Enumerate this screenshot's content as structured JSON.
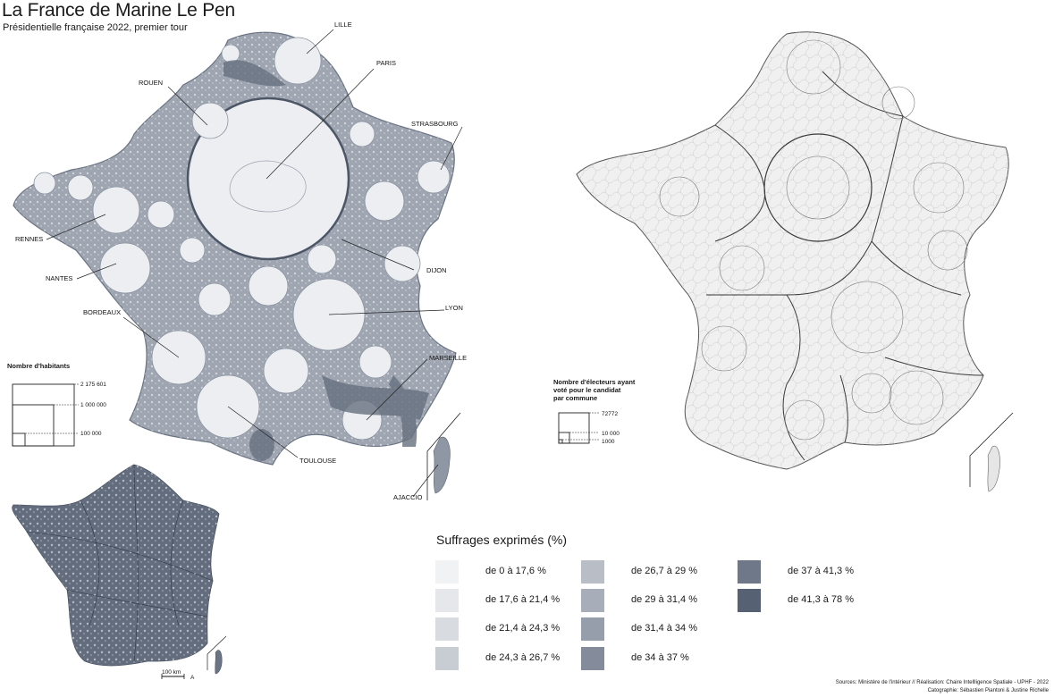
{
  "title": "La France de Marine Le Pen",
  "subtitle": "Présidentielle française 2022, premier tour",
  "cities": {
    "lille": "LILLE",
    "paris": "PARIS",
    "rouen": "ROUEN",
    "strasbourg": "STRASBOURG",
    "rennes": "RENNES",
    "dijon": "DIJON",
    "nantes": "NANTES",
    "lyon": "LYON",
    "bordeaux": "BORDEAUX",
    "marseille": "MARSEILLE",
    "toulouse": "TOULOUSE",
    "ajaccio": "AJACCIO"
  },
  "population_legend": {
    "title": "Nombre d'habitants",
    "values": [
      "2 175 601",
      "1 000 000",
      "100 000"
    ]
  },
  "voters_legend": {
    "title_line1": "Nombre d'électeurs ayant",
    "title_line2": "voté pour le candidat",
    "title_line3": "par commune",
    "values": [
      "72772",
      "10 000",
      "1000"
    ]
  },
  "scale_bar": "100 km",
  "north_label": "A",
  "legend": {
    "title": "Suffrages exprimés (%)",
    "classes": [
      {
        "label": "de 0 à 17,6 %",
        "color": "#f1f2f4"
      },
      {
        "label": "de 17,6 à 21,4 %",
        "color": "#e6e7ea"
      },
      {
        "label": "de 21,4 à 24,3 %",
        "color": "#d8dbe0"
      },
      {
        "label": "de 24,3 à 26,7 %",
        "color": "#c8ccd3"
      },
      {
        "label": "de 26,7 à 29 %",
        "color": "#b8bdc6"
      },
      {
        "label": "de 29 à 31,4 %",
        "color": "#a8aeb9"
      },
      {
        "label": "de 31,4 à 34 %",
        "color": "#969dab"
      },
      {
        "label": "de 34 à 37 %",
        "color": "#848c9c"
      },
      {
        "label": "de 37 à 41,3 %",
        "color": "#6f7888"
      },
      {
        "label": "de 41,3 à 78 %",
        "color": "#566173"
      }
    ]
  },
  "sources_line1": "Sources: Ministère de l'intérieur // Réalisation: Chaire Intellligence Spatiale - UPHF - 2022",
  "sources_line2": "Catographie: Sébastien Piantoni & Justine Richelle"
}
